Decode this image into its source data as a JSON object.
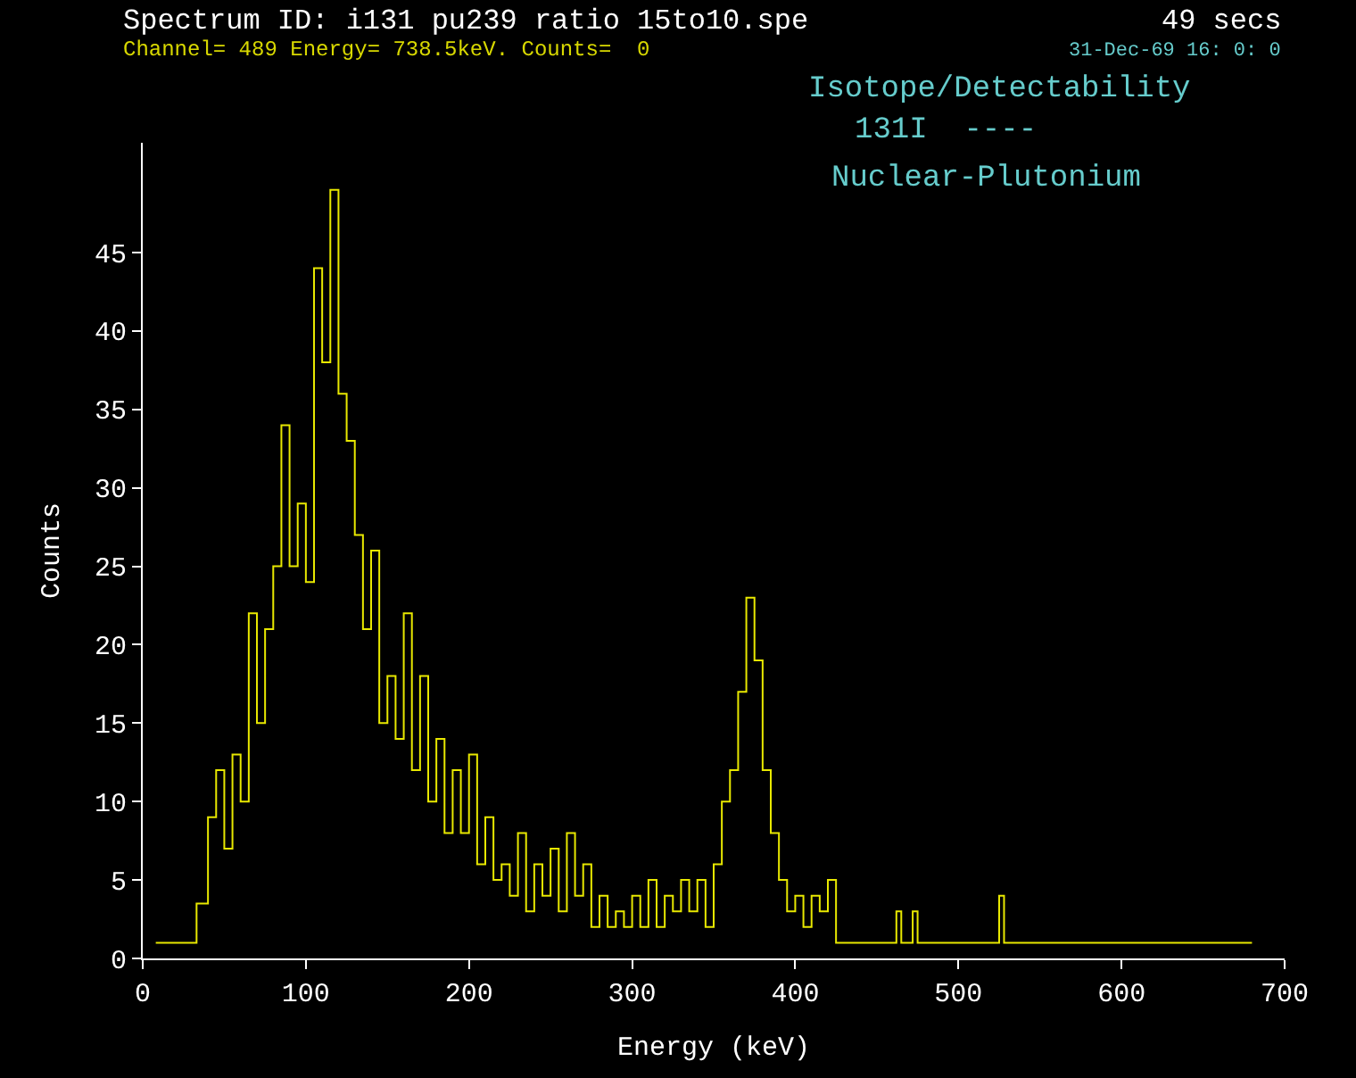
{
  "chart_data": {
    "type": "step",
    "title": "Spectrum ID: i131 pu239 ratio 15to10.spe",
    "subtitle": "Channel= 489 Energy= 738.5keV. Counts=  0",
    "xlabel": "Energy (keV)",
    "ylabel": "Counts",
    "annotations": [
      "49 secs",
      "31-Dec-69 16: 0: 0",
      "Isotope/Detectability",
      "131I  ----",
      "Nuclear-Plutonium"
    ],
    "series": [
      {
        "color": "#e8e800",
        "x": [
          8,
          33,
          40,
          45,
          50,
          55,
          60,
          65,
          70,
          75,
          80,
          85,
          90,
          95,
          100,
          105,
          110,
          115,
          120,
          125,
          130,
          135,
          140,
          145,
          150,
          155,
          160,
          165,
          170,
          175,
          180,
          185,
          190,
          195,
          200,
          205,
          210,
          215,
          220,
          225,
          230,
          235,
          240,
          245,
          250,
          255,
          260,
          265,
          270,
          275,
          280,
          285,
          290,
          295,
          300,
          305,
          310,
          315,
          320,
          325,
          330,
          335,
          340,
          345,
          350,
          355,
          360,
          365,
          370,
          375,
          380,
          385,
          390,
          395,
          400,
          405,
          410,
          415,
          420,
          425,
          462,
          465,
          472,
          475,
          525,
          528,
          680
        ],
        "values": [
          1,
          3.5,
          9,
          12,
          7,
          13,
          10,
          22,
          15,
          21,
          25,
          34,
          25,
          29,
          24,
          44,
          38,
          49,
          36,
          33,
          27,
          21,
          26,
          15,
          18,
          14,
          22,
          12,
          18,
          10,
          14,
          8,
          12,
          8,
          13,
          6,
          9,
          5,
          6,
          4,
          8,
          3,
          6,
          4,
          7,
          3,
          8,
          4,
          6,
          2,
          4,
          2,
          3,
          2,
          4,
          2,
          5,
          2,
          4,
          3,
          5,
          3,
          5,
          2,
          6,
          10,
          12,
          17,
          23,
          19,
          12,
          8,
          5,
          3,
          4,
          2,
          4,
          3,
          5,
          1,
          3,
          1,
          3,
          1,
          4,
          1,
          1
        ]
      }
    ],
    "xlim": [
      0,
      700
    ],
    "xticks": [
      0,
      100,
      200,
      300,
      400,
      500,
      600,
      700
    ],
    "ylim": [
      0,
      52
    ],
    "yticks": [
      0,
      5,
      10,
      15,
      20,
      25,
      30,
      35,
      40,
      45
    ],
    "grid": false,
    "legend": false,
    "marker": "none",
    "line_style": "solid"
  }
}
